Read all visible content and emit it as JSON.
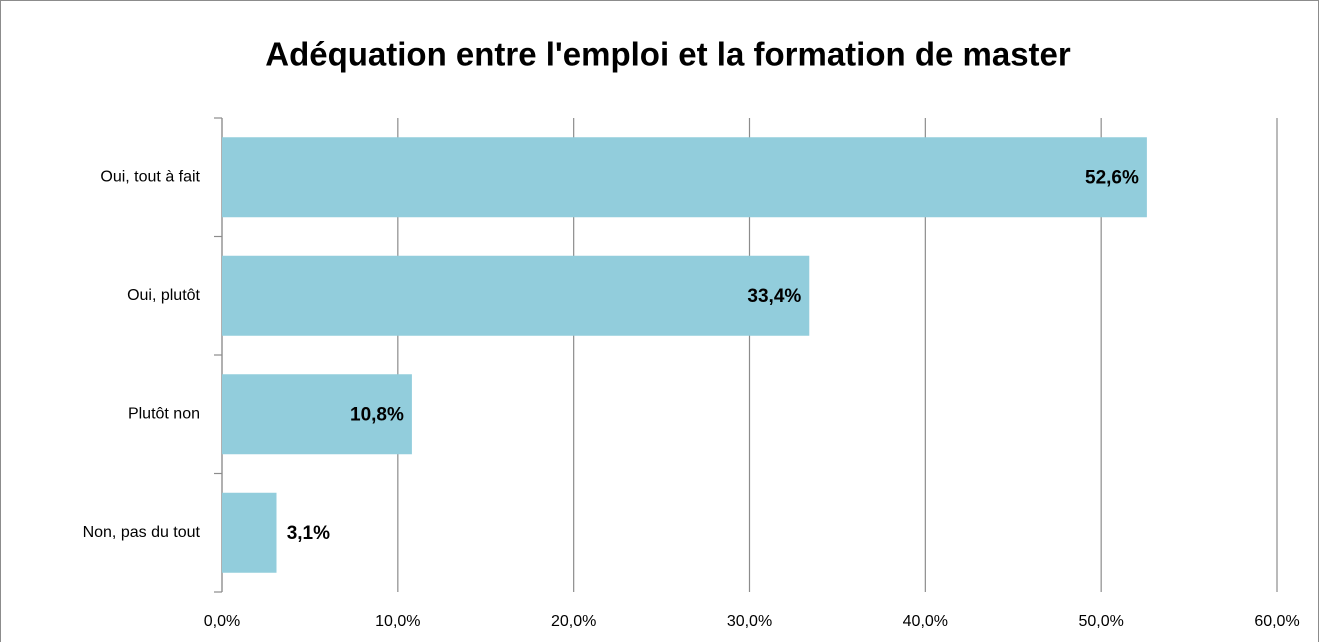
{
  "chart_data": {
    "type": "bar",
    "orientation": "horizontal",
    "title": "Adéquation entre l'emploi et la formation de master",
    "categories": [
      "Oui, tout à fait",
      "Oui, plutôt",
      "Plutôt non",
      "Non, pas du tout"
    ],
    "values": [
      52.6,
      33.4,
      10.8,
      3.1
    ],
    "value_labels": [
      "52,6%",
      "33,4%",
      "10,8%",
      "3,1%"
    ],
    "color": "#92cddc",
    "xlim": [
      0,
      60
    ],
    "xticks": [
      {
        "value": 0,
        "label": "0,0%"
      },
      {
        "value": 10,
        "label": "10,0%"
      },
      {
        "value": 20,
        "label": "20,0%"
      },
      {
        "value": 30,
        "label": "30,0%"
      },
      {
        "value": 40,
        "label": "40,0%"
      },
      {
        "value": 50,
        "label": "50,0%"
      },
      {
        "value": 60,
        "label": "60,0%"
      }
    ],
    "grid": true
  }
}
